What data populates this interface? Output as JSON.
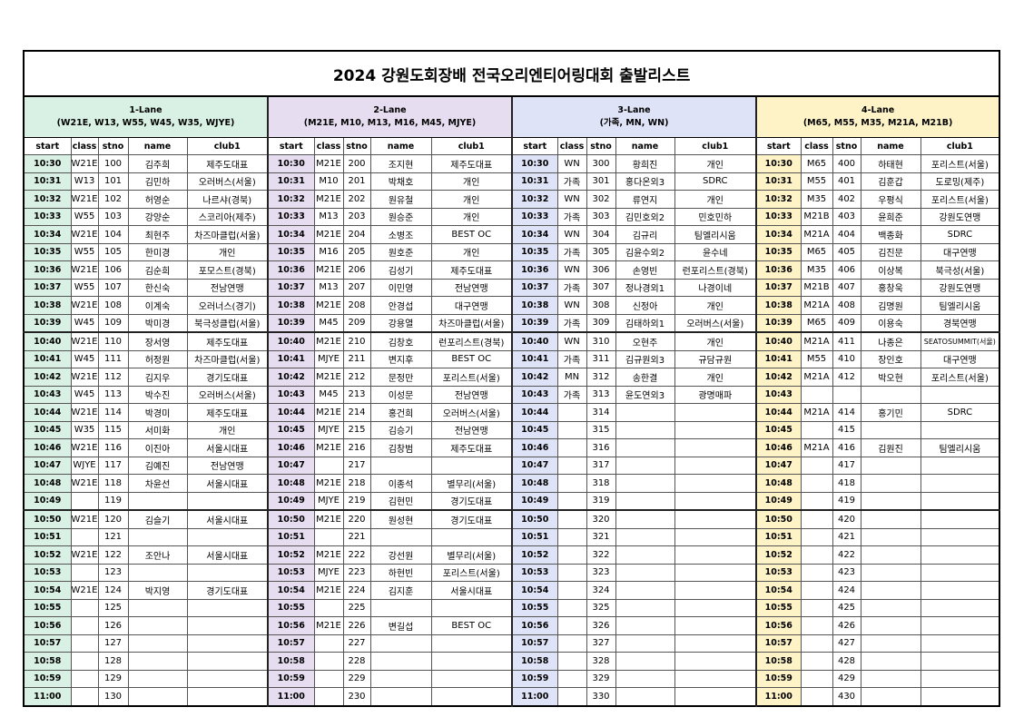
{
  "title": "2024 강원도회장배 전국오리엔티어링대회 출발리스트",
  "columns": [
    "start",
    "class",
    "stno",
    "name",
    "club1"
  ],
  "lanes": [
    {
      "title": "1-Lane",
      "subtitle": "(W21E, W13, W55, W45, W35, WJYE)",
      "rows": [
        [
          "10:30",
          "W21E",
          100,
          "김주희",
          "제주도대표"
        ],
        [
          "10:31",
          "W13",
          101,
          "김민하",
          "오러버스(서울)"
        ],
        [
          "10:32",
          "W21E",
          102,
          "허영순",
          "나르샤(경북)"
        ],
        [
          "10:33",
          "W55",
          103,
          "강양순",
          "스코리아(제주)"
        ],
        [
          "10:34",
          "W21E",
          104,
          "최현주",
          "차즈마클럽(서울)"
        ],
        [
          "10:35",
          "W55",
          105,
          "한미경",
          "개인"
        ],
        [
          "10:36",
          "W21E",
          106,
          "김순희",
          "포모스트(경북)"
        ],
        [
          "10:37",
          "W55",
          107,
          "한신숙",
          "전남연맹"
        ],
        [
          "10:38",
          "W21E",
          108,
          "이계숙",
          "오러너스(경기)"
        ],
        [
          "10:39",
          "W45",
          109,
          "박미경",
          "북극성클럽(서울)"
        ],
        [
          "10:40",
          "W21E",
          110,
          "장서영",
          "제주도대표"
        ],
        [
          "10:41",
          "W45",
          111,
          "허정원",
          "차즈마클럽(서울)"
        ],
        [
          "10:42",
          "W21E",
          112,
          "김지우",
          "경기도대표"
        ],
        [
          "10:43",
          "W45",
          113,
          "박수진",
          "오러버스(서울)"
        ],
        [
          "10:44",
          "W21E",
          114,
          "박경미",
          "제주도대표"
        ],
        [
          "10:45",
          "W35",
          115,
          "서미화",
          "개인"
        ],
        [
          "10:46",
          "W21E",
          116,
          "이진아",
          "서울시대표"
        ],
        [
          "10:47",
          "WJYE",
          117,
          "김예진",
          "전남연맹"
        ],
        [
          "10:48",
          "W21E",
          118,
          "차윤선",
          "서울시대표"
        ],
        [
          "10:49",
          null,
          119,
          null,
          null
        ],
        [
          "10:50",
          "W21E",
          120,
          "김슬기",
          "서울시대표"
        ],
        [
          "10:51",
          null,
          121,
          null,
          null
        ],
        [
          "10:52",
          "W21E",
          122,
          "조안나",
          "서울시대표"
        ],
        [
          "10:53",
          null,
          123,
          null,
          null
        ],
        [
          "10:54",
          "W21E",
          124,
          "박지영",
          "경기도대표"
        ],
        [
          "10:55",
          null,
          125,
          null,
          null
        ],
        [
          "10:56",
          null,
          126,
          null,
          null
        ],
        [
          "10:57",
          null,
          127,
          null,
          null
        ],
        [
          "10:58",
          null,
          128,
          null,
          null
        ],
        [
          "10:59",
          null,
          129,
          null,
          null
        ],
        [
          "11:00",
          null,
          130,
          null,
          null
        ]
      ]
    },
    {
      "title": "2-Lane",
      "subtitle": "(M21E, M10, M13, M16, M45, MJYE)",
      "rows": [
        [
          "10:30",
          "M21E",
          200,
          "조지현",
          "제주도대표"
        ],
        [
          "10:31",
          "M10",
          201,
          "박채호",
          "개인"
        ],
        [
          "10:32",
          "M21E",
          202,
          "원유철",
          "개인"
        ],
        [
          "10:33",
          "M13",
          203,
          "원승준",
          "개인"
        ],
        [
          "10:34",
          "M21E",
          204,
          "소병조",
          "BEST OC"
        ],
        [
          "10:35",
          "M16",
          205,
          "원호준",
          "개인"
        ],
        [
          "10:36",
          "M21E",
          206,
          "김성기",
          "제주도대표"
        ],
        [
          "10:37",
          "M13",
          207,
          "이민영",
          "전남연맹"
        ],
        [
          "10:38",
          "M21E",
          208,
          "안경섭",
          "대구연맹"
        ],
        [
          "10:39",
          "M45",
          209,
          "강용열",
          "차즈마클럽(서울)"
        ],
        [
          "10:40",
          "M21E",
          210,
          "김창호",
          "런포리스트(경북)"
        ],
        [
          "10:41",
          "MJYE",
          211,
          "변지후",
          "BEST OC"
        ],
        [
          "10:42",
          "M21E",
          212,
          "문정만",
          "포리스트(서울)"
        ],
        [
          "10:43",
          "M45",
          213,
          "이성문",
          "전남연맹"
        ],
        [
          "10:44",
          "M21E",
          214,
          "홍건희",
          "오러버스(서울)"
        ],
        [
          "10:45",
          "MJYE",
          215,
          "김승기",
          "전남연맹"
        ],
        [
          "10:46",
          "M21E",
          216,
          "김창범",
          "제주도대표"
        ],
        [
          "10:47",
          null,
          217,
          null,
          null
        ],
        [
          "10:48",
          "M21E",
          218,
          "이종석",
          "별무리(서울)"
        ],
        [
          "10:49",
          "MJYE",
          219,
          "김현민",
          "경기도대표"
        ],
        [
          "10:50",
          "M21E",
          220,
          "원성현",
          "경기도대표"
        ],
        [
          "10:51",
          null,
          221,
          null,
          null
        ],
        [
          "10:52",
          "M21E",
          222,
          "강선원",
          "별무리(서울)"
        ],
        [
          "10:53",
          "MJYE",
          223,
          "하현빈",
          "포리스트(서울)"
        ],
        [
          "10:54",
          "M21E",
          224,
          "김지훈",
          "서울시대표"
        ],
        [
          "10:55",
          null,
          225,
          null,
          null
        ],
        [
          "10:56",
          "M21E",
          226,
          "변길섭",
          "BEST OC"
        ],
        [
          "10:57",
          null,
          227,
          null,
          null
        ],
        [
          "10:58",
          null,
          228,
          null,
          null
        ],
        [
          "10:59",
          null,
          229,
          null,
          null
        ],
        [
          "11:00",
          null,
          230,
          null,
          null
        ]
      ]
    },
    {
      "title": "3-Lane",
      "subtitle": "(가족, MN, WN)",
      "rows": [
        [
          "10:30",
          "WN",
          300,
          "황희진",
          "개인"
        ],
        [
          "10:31",
          "가족",
          301,
          "홍다온외3",
          "SDRC"
        ],
        [
          "10:32",
          "WN",
          302,
          "류연지",
          "개인"
        ],
        [
          "10:33",
          "가족",
          303,
          "김민호외2",
          "민호민하"
        ],
        [
          "10:34",
          "WN",
          304,
          "김규리",
          "팀엘리시움"
        ],
        [
          "10:35",
          "가족",
          305,
          "김윤수외2",
          "윤수네"
        ],
        [
          "10:36",
          "WN",
          306,
          "손영빈",
          "런포리스트(경북)"
        ],
        [
          "10:37",
          "가족",
          307,
          "정나경외1",
          "나경이네"
        ],
        [
          "10:38",
          "WN",
          308,
          "신정아",
          "개인"
        ],
        [
          "10:39",
          "가족",
          309,
          "김태하외1",
          "오러버스(서울)"
        ],
        [
          "10:40",
          "WN",
          310,
          "오현주",
          "개인"
        ],
        [
          "10:41",
          "가족",
          311,
          "김규원외3",
          "규담규원"
        ],
        [
          "10:42",
          "MN",
          312,
          "송한결",
          "개인"
        ],
        [
          "10:43",
          "가족",
          313,
          "윤도연외3",
          "광명매파"
        ],
        [
          "10:44",
          null,
          314,
          null,
          null
        ],
        [
          "10:45",
          null,
          315,
          null,
          null
        ],
        [
          "10:46",
          null,
          316,
          null,
          null
        ],
        [
          "10:47",
          null,
          317,
          null,
          null
        ],
        [
          "10:48",
          null,
          318,
          null,
          null
        ],
        [
          "10:49",
          null,
          319,
          null,
          null
        ],
        [
          "10:50",
          null,
          320,
          null,
          null
        ],
        [
          "10:51",
          null,
          321,
          null,
          null
        ],
        [
          "10:52",
          null,
          322,
          null,
          null
        ],
        [
          "10:53",
          null,
          323,
          null,
          null
        ],
        [
          "10:54",
          null,
          324,
          null,
          null
        ],
        [
          "10:55",
          null,
          325,
          null,
          null
        ],
        [
          "10:56",
          null,
          326,
          null,
          null
        ],
        [
          "10:57",
          null,
          327,
          null,
          null
        ],
        [
          "10:58",
          null,
          328,
          null,
          null
        ],
        [
          "10:59",
          null,
          329,
          null,
          null
        ],
        [
          "11:00",
          null,
          330,
          null,
          null
        ]
      ]
    },
    {
      "title": "4-Lane",
      "subtitle": "(M65, M55, M35, M21A, M21B)",
      "rows": [
        [
          "10:30",
          "M65",
          400,
          "하태현",
          "포리스트(서울)"
        ],
        [
          "10:31",
          "M55",
          401,
          "김훈갑",
          "도로밍(제주)"
        ],
        [
          "10:32",
          "M35",
          402,
          "우평식",
          "포리스트(서울)"
        ],
        [
          "10:33",
          "M21B",
          403,
          "윤희준",
          "강원도연맹"
        ],
        [
          "10:34",
          "M21A",
          404,
          "백종화",
          "SDRC"
        ],
        [
          "10:35",
          "M65",
          405,
          "김진문",
          "대구연맹"
        ],
        [
          "10:36",
          "M35",
          406,
          "이상복",
          "북극성(서울)"
        ],
        [
          "10:37",
          "M21B",
          407,
          "홍창욱",
          "강원도연맹"
        ],
        [
          "10:38",
          "M21A",
          408,
          "김명원",
          "팀엘리시움"
        ],
        [
          "10:39",
          "M65",
          409,
          "이용숙",
          "경북연맹"
        ],
        [
          "10:40",
          "M21A",
          411,
          "나종은",
          "SEATOSUMMIT(서울)"
        ],
        [
          "10:41",
          "M55",
          410,
          "장인호",
          "대구연맹"
        ],
        [
          "10:42",
          "M21A",
          412,
          "박오현",
          "포리스트(서울)"
        ],
        [
          "10:43",
          null,
          null,
          null,
          null
        ],
        [
          "10:44",
          "M21A",
          414,
          "홍기민",
          "SDRC"
        ],
        [
          "10:45",
          null,
          415,
          null,
          null
        ],
        [
          "10:46",
          "M21A",
          416,
          "김원진",
          "팀엘리시움"
        ],
        [
          "10:47",
          null,
          417,
          null,
          null
        ],
        [
          "10:48",
          null,
          418,
          null,
          null
        ],
        [
          "10:49",
          null,
          419,
          null,
          null
        ],
        [
          "10:50",
          null,
          420,
          null,
          null
        ],
        [
          "10:51",
          null,
          421,
          null,
          null
        ],
        [
          "10:52",
          null,
          422,
          null,
          null
        ],
        [
          "10:53",
          null,
          423,
          null,
          null
        ],
        [
          "10:54",
          null,
          424,
          null,
          null
        ],
        [
          "10:55",
          null,
          425,
          null,
          null
        ],
        [
          "10:56",
          null,
          426,
          null,
          null
        ],
        [
          "10:57",
          null,
          427,
          null,
          null
        ],
        [
          "10:58",
          null,
          428,
          null,
          null
        ],
        [
          "10:59",
          null,
          429,
          null,
          null
        ],
        [
          "11:00",
          null,
          430,
          null,
          null
        ]
      ]
    }
  ]
}
